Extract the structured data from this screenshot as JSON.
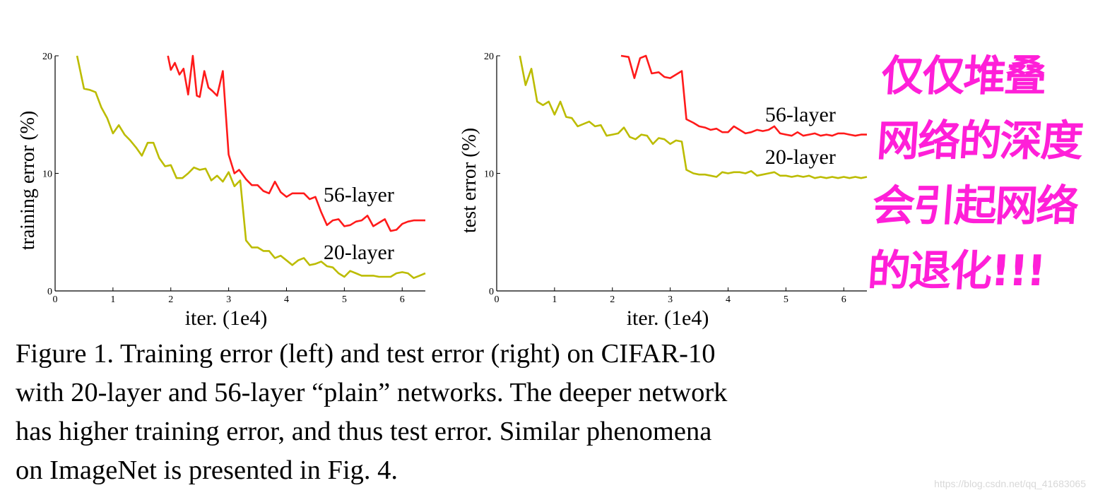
{
  "chart_data": [
    {
      "type": "line",
      "xlabel": "iter. (1e4)",
      "ylabel": "training error (%)",
      "xlim": [
        0,
        6.4
      ],
      "ylim": [
        0,
        20
      ],
      "xticks": [
        "0",
        "1",
        "2",
        "3",
        "4",
        "5",
        "6"
      ],
      "yticks": [
        "0",
        "10",
        "20"
      ],
      "series": [
        {
          "name": "56-layer",
          "color": "#ff1a1a",
          "x": [
            1.95,
            2.0,
            2.07,
            2.15,
            2.22,
            2.3,
            2.38,
            2.45,
            2.5,
            2.58,
            2.65,
            2.72,
            2.8,
            2.9,
            3.0,
            3.1,
            3.18,
            3.3,
            3.4,
            3.5,
            3.6,
            3.7,
            3.8,
            3.9,
            4.0,
            4.1,
            4.2,
            4.3,
            4.4,
            4.5,
            4.6,
            4.7,
            4.8,
            4.9,
            5.0,
            5.1,
            5.2,
            5.3,
            5.4,
            5.5,
            5.6,
            5.7,
            5.8,
            5.9,
            6.0,
            6.1,
            6.2,
            6.3,
            6.4
          ],
          "values": [
            20.0,
            18.8,
            19.4,
            18.4,
            18.9,
            16.7,
            20.0,
            16.6,
            16.5,
            18.7,
            17.3,
            17.0,
            16.6,
            18.7,
            11.6,
            10.0,
            10.3,
            9.5,
            9.0,
            9.0,
            8.5,
            8.3,
            9.3,
            8.4,
            8.0,
            8.3,
            8.3,
            8.3,
            7.8,
            8.0,
            6.7,
            5.6,
            6.0,
            6.1,
            5.5,
            5.6,
            5.9,
            6.0,
            6.4,
            5.5,
            5.8,
            6.1,
            5.1,
            5.2,
            5.7,
            5.9,
            6.0,
            6.0,
            6.0
          ],
          "label_x": 5.25,
          "label_y": 7.6
        },
        {
          "name": "20-layer",
          "color": "#bcbc00",
          "x": [
            0.38,
            0.5,
            0.6,
            0.7,
            0.8,
            0.9,
            1.0,
            1.1,
            1.2,
            1.3,
            1.4,
            1.5,
            1.6,
            1.7,
            1.8,
            1.9,
            2.0,
            2.1,
            2.2,
            2.3,
            2.4,
            2.5,
            2.6,
            2.7,
            2.8,
            2.9,
            3.0,
            3.1,
            3.2,
            3.3,
            3.4,
            3.5,
            3.6,
            3.7,
            3.8,
            3.9,
            4.0,
            4.1,
            4.2,
            4.3,
            4.4,
            4.5,
            4.6,
            4.7,
            4.8,
            4.9,
            5.0,
            5.1,
            5.2,
            5.3,
            5.4,
            5.5,
            5.6,
            5.7,
            5.8,
            5.9,
            6.0,
            6.1,
            6.2,
            6.3,
            6.4
          ],
          "values": [
            20.0,
            17.2,
            17.1,
            16.9,
            15.6,
            14.7,
            13.4,
            14.1,
            13.3,
            12.8,
            12.2,
            11.5,
            12.6,
            12.6,
            11.3,
            10.6,
            10.7,
            9.6,
            9.6,
            10.0,
            10.5,
            10.3,
            10.4,
            9.4,
            9.8,
            9.3,
            10.1,
            8.9,
            9.4,
            4.3,
            3.7,
            3.7,
            3.4,
            3.4,
            2.8,
            3.0,
            2.6,
            2.2,
            2.6,
            2.8,
            2.2,
            2.3,
            2.5,
            2.1,
            2.0,
            1.5,
            1.2,
            1.7,
            1.5,
            1.3,
            1.3,
            1.3,
            1.2,
            1.2,
            1.2,
            1.5,
            1.6,
            1.5,
            1.1,
            1.3,
            1.5
          ],
          "label_x": 5.25,
          "label_y": 2.7
        }
      ]
    },
    {
      "type": "line",
      "xlabel": "iter. (1e4)",
      "ylabel": "test error (%)",
      "xlim": [
        0,
        6.4
      ],
      "ylim": [
        0,
        20
      ],
      "xticks": [
        "0",
        "1",
        "2",
        "3",
        "4",
        "5",
        "6"
      ],
      "yticks": [
        "0",
        "10",
        "20"
      ],
      "series": [
        {
          "name": "56-layer",
          "color": "#ff1a1a",
          "x": [
            2.15,
            2.28,
            2.38,
            2.48,
            2.58,
            2.68,
            2.8,
            2.9,
            3.0,
            3.1,
            3.2,
            3.28,
            3.4,
            3.5,
            3.6,
            3.7,
            3.8,
            3.9,
            4.0,
            4.1,
            4.2,
            4.3,
            4.4,
            4.5,
            4.6,
            4.7,
            4.8,
            4.9,
            5.0,
            5.1,
            5.2,
            5.3,
            5.4,
            5.5,
            5.6,
            5.7,
            5.8,
            5.9,
            6.0,
            6.1,
            6.2,
            6.3,
            6.4
          ],
          "values": [
            20.0,
            19.9,
            18.1,
            19.8,
            20.0,
            18.5,
            18.6,
            18.2,
            18.1,
            18.4,
            18.7,
            14.6,
            14.3,
            14.0,
            13.9,
            13.7,
            13.8,
            13.5,
            13.5,
            14.0,
            13.7,
            13.4,
            13.5,
            13.7,
            13.6,
            13.7,
            14.0,
            13.4,
            13.3,
            13.2,
            13.5,
            13.2,
            13.3,
            13.4,
            13.2,
            13.3,
            13.2,
            13.4,
            13.4,
            13.3,
            13.2,
            13.3,
            13.3
          ],
          "label_x": 5.25,
          "label_y": 14.4
        },
        {
          "name": "20-layer",
          "color": "#bcbc00",
          "x": [
            0.4,
            0.5,
            0.6,
            0.7,
            0.8,
            0.9,
            1.0,
            1.1,
            1.2,
            1.3,
            1.4,
            1.5,
            1.6,
            1.7,
            1.8,
            1.9,
            2.0,
            2.1,
            2.2,
            2.3,
            2.4,
            2.5,
            2.6,
            2.7,
            2.8,
            2.9,
            3.0,
            3.1,
            3.2,
            3.28,
            3.4,
            3.5,
            3.6,
            3.7,
            3.8,
            3.9,
            4.0,
            4.1,
            4.2,
            4.3,
            4.4,
            4.5,
            4.6,
            4.7,
            4.8,
            4.9,
            5.0,
            5.1,
            5.2,
            5.3,
            5.4,
            5.5,
            5.6,
            5.7,
            5.8,
            5.9,
            6.0,
            6.1,
            6.2,
            6.3,
            6.4
          ],
          "values": [
            20.0,
            17.5,
            18.9,
            16.1,
            15.8,
            16.1,
            15.0,
            16.1,
            14.8,
            14.7,
            14.0,
            14.2,
            14.4,
            14.0,
            14.1,
            13.2,
            13.3,
            13.4,
            13.9,
            13.1,
            12.9,
            13.3,
            13.2,
            12.5,
            13.0,
            12.9,
            12.5,
            12.8,
            12.7,
            10.3,
            10.0,
            9.9,
            9.9,
            9.8,
            9.7,
            10.1,
            10.0,
            10.1,
            10.1,
            10.0,
            10.2,
            9.8,
            9.9,
            10.0,
            10.1,
            9.8,
            9.8,
            9.7,
            9.8,
            9.7,
            9.8,
            9.6,
            9.7,
            9.6,
            9.7,
            9.6,
            9.7,
            9.6,
            9.7,
            9.6,
            9.7
          ],
          "label_x": 5.25,
          "label_y": 10.8
        }
      ]
    }
  ],
  "caption": {
    "line1": "Figure 1. Training error (left) and test error (right) on CIFAR-10",
    "line2": "with 20-layer and 56-layer “plain” networks. The deeper network",
    "line3": "has higher training error, and thus test error.  Similar phenomena",
    "line4": "on ImageNet is presented in Fig. 4."
  },
  "annotation": {
    "lines": [
      "仅仅堆叠",
      "网络的深度",
      "会引起网络",
      "的退化!!!"
    ],
    "color": "#ff1fd8"
  },
  "watermark": "https://blog.csdn.net/qq_41683065"
}
